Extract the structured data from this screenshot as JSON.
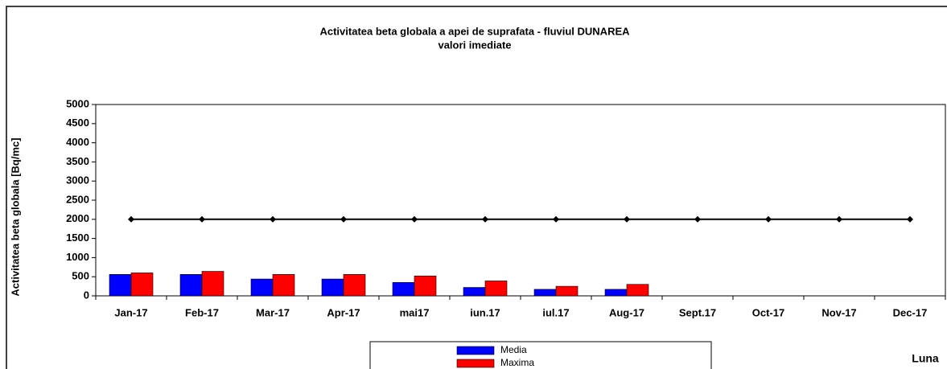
{
  "chart_data": {
    "type": "bar",
    "title": "Activitatea beta globala a apei de suprafata - fluviul DUNAREA",
    "subtitle": "valori imediate",
    "y_label": "Activitatea beta globala [Bq/mc]",
    "x_label": "Luna",
    "categories": [
      "Jan-17",
      "Feb-17",
      "Mar-17",
      "Apr-17",
      "mai17",
      "iun.17",
      "iul.17",
      "Aug-17",
      "Sept.17",
      "Oct-17",
      "Nov-17",
      "Dec-17"
    ],
    "series": [
      {
        "name": "Media",
        "color": "#0000ff",
        "type": "bar",
        "values": [
          560,
          560,
          440,
          440,
          350,
          220,
          170,
          170,
          null,
          null,
          null,
          null
        ]
      },
      {
        "name": "Maxima",
        "color": "#ff0000",
        "type": "bar",
        "values": [
          600,
          640,
          560,
          560,
          520,
          390,
          250,
          300,
          null,
          null,
          null,
          null
        ]
      },
      {
        "color": "#000000",
        "type": "line",
        "values": [
          2000,
          2000,
          2000,
          2000,
          2000,
          2000,
          2000,
          2000,
          2000,
          2000,
          2000,
          2000
        ]
      }
    ],
    "ylim": [
      0,
      5000
    ],
    "yticks": [
      0,
      500,
      1000,
      1500,
      2000,
      2500,
      3000,
      3500,
      4000,
      4500,
      5000
    ],
    "grid": false
  }
}
